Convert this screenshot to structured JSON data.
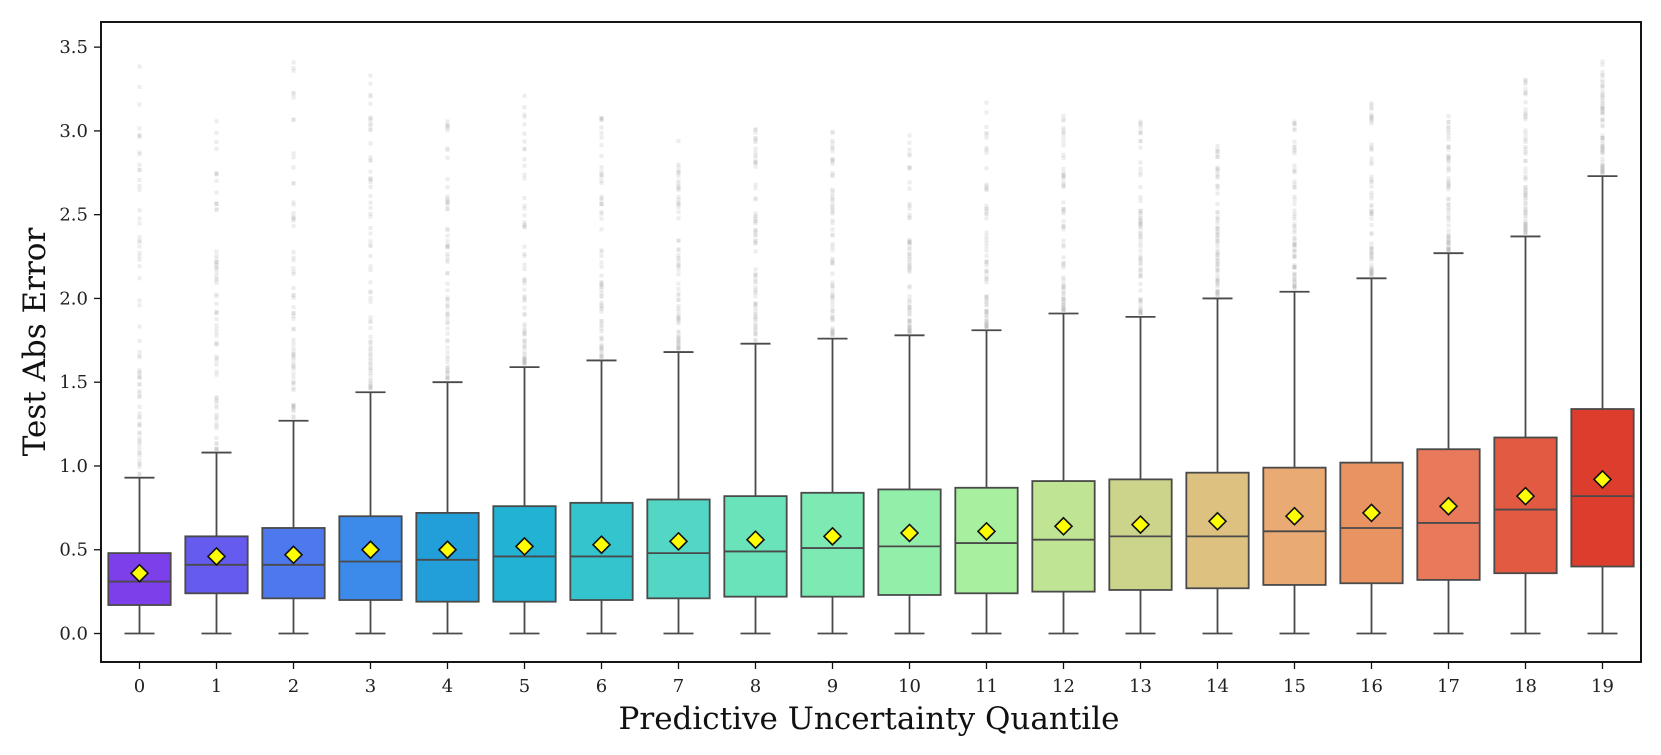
{
  "chart_data": {
    "type": "box",
    "title": "",
    "xlabel": "Predictive Uncertainty Quantile",
    "ylabel": "Test Abs Error",
    "ylim": [
      -0.17,
      3.65
    ],
    "y_ticks": [
      "0.0",
      "0.5",
      "1.0",
      "1.5",
      "2.0",
      "2.5",
      "3.0",
      "3.5"
    ],
    "y_tick_values": [
      0,
      0.5,
      1.0,
      1.5,
      2.0,
      2.5,
      3.0,
      3.5
    ],
    "grid": false,
    "legend": "none",
    "mean_marker": {
      "shape": "diamond",
      "color": "#ffff00",
      "edge_color": "#111111"
    },
    "outlier_color": "#bdbdbd",
    "boxes": [
      {
        "category": "0",
        "color": "#7c3fea",
        "whisker_low": 0.0,
        "q1": 0.17,
        "median": 0.31,
        "q3": 0.48,
        "whisker_high": 0.93,
        "mean": 0.36,
        "outlier_max": 3.48
      },
      {
        "category": "1",
        "color": "#655bee",
        "whisker_low": 0.0,
        "q1": 0.24,
        "median": 0.41,
        "q3": 0.58,
        "whisker_high": 1.08,
        "mean": 0.46,
        "outlier_max": 3.2
      },
      {
        "category": "2",
        "color": "#4e78ee",
        "whisker_low": 0.0,
        "q1": 0.21,
        "median": 0.41,
        "q3": 0.63,
        "whisker_high": 1.27,
        "mean": 0.47,
        "outlier_max": 3.45
      },
      {
        "category": "3",
        "color": "#3c8ae9",
        "whisker_low": 0.0,
        "q1": 0.2,
        "median": 0.43,
        "q3": 0.7,
        "whisker_high": 1.44,
        "mean": 0.5,
        "outlier_max": 3.34
      },
      {
        "category": "4",
        "color": "#229fd8",
        "whisker_low": 0.0,
        "q1": 0.19,
        "median": 0.44,
        "q3": 0.72,
        "whisker_high": 1.5,
        "mean": 0.5,
        "outlier_max": 3.06
      },
      {
        "category": "5",
        "color": "#22b2d4",
        "whisker_low": 0.0,
        "q1": 0.19,
        "median": 0.46,
        "q3": 0.76,
        "whisker_high": 1.59,
        "mean": 0.52,
        "outlier_max": 3.3
      },
      {
        "category": "6",
        "color": "#33c4cd",
        "whisker_low": 0.0,
        "q1": 0.2,
        "median": 0.46,
        "q3": 0.78,
        "whisker_high": 1.63,
        "mean": 0.53,
        "outlier_max": 3.15
      },
      {
        "category": "7",
        "color": "#53d6c4",
        "whisker_low": 0.0,
        "q1": 0.21,
        "median": 0.48,
        "q3": 0.8,
        "whisker_high": 1.68,
        "mean": 0.55,
        "outlier_max": 2.97
      },
      {
        "category": "8",
        "color": "#6ae3ba",
        "whisker_low": 0.0,
        "q1": 0.22,
        "median": 0.49,
        "q3": 0.82,
        "whisker_high": 1.73,
        "mean": 0.56,
        "outlier_max": 3.01
      },
      {
        "category": "9",
        "color": "#7de9b3",
        "whisker_low": 0.0,
        "q1": 0.22,
        "median": 0.51,
        "q3": 0.84,
        "whisker_high": 1.76,
        "mean": 0.58,
        "outlier_max": 3.04
      },
      {
        "category": "10",
        "color": "#92efaa",
        "whisker_low": 0.0,
        "q1": 0.23,
        "median": 0.52,
        "q3": 0.86,
        "whisker_high": 1.78,
        "mean": 0.6,
        "outlier_max": 3.09
      },
      {
        "category": "11",
        "color": "#a8f09f",
        "whisker_low": 0.0,
        "q1": 0.24,
        "median": 0.54,
        "q3": 0.87,
        "whisker_high": 1.81,
        "mean": 0.61,
        "outlier_max": 3.2
      },
      {
        "category": "12",
        "color": "#bee494",
        "whisker_low": 0.0,
        "q1": 0.25,
        "median": 0.56,
        "q3": 0.91,
        "whisker_high": 1.91,
        "mean": 0.64,
        "outlier_max": 3.13
      },
      {
        "category": "13",
        "color": "#ccd48c",
        "whisker_low": 0.0,
        "q1": 0.26,
        "median": 0.58,
        "q3": 0.92,
        "whisker_high": 1.89,
        "mean": 0.65,
        "outlier_max": 3.09
      },
      {
        "category": "14",
        "color": "#dcc180",
        "whisker_low": 0.0,
        "q1": 0.27,
        "median": 0.58,
        "q3": 0.96,
        "whisker_high": 2.0,
        "mean": 0.67,
        "outlier_max": 2.98
      },
      {
        "category": "15",
        "color": "#eaaa73",
        "whisker_low": 0.0,
        "q1": 0.29,
        "median": 0.61,
        "q3": 0.99,
        "whisker_high": 2.04,
        "mean": 0.7,
        "outlier_max": 3.09
      },
      {
        "category": "16",
        "color": "#e99363",
        "whisker_low": 0.0,
        "q1": 0.3,
        "median": 0.63,
        "q3": 1.02,
        "whisker_high": 2.12,
        "mean": 0.72,
        "outlier_max": 3.21
      },
      {
        "category": "17",
        "color": "#e8795a",
        "whisker_low": 0.0,
        "q1": 0.32,
        "median": 0.66,
        "q3": 1.1,
        "whisker_high": 2.27,
        "mean": 0.76,
        "outlier_max": 3.11
      },
      {
        "category": "18",
        "color": "#e25a41",
        "whisker_low": 0.0,
        "q1": 0.36,
        "median": 0.74,
        "q3": 1.17,
        "whisker_high": 2.37,
        "mean": 0.82,
        "outlier_max": 3.31
      },
      {
        "category": "19",
        "color": "#dc3d2d",
        "whisker_low": 0.0,
        "q1": 0.4,
        "median": 0.82,
        "q3": 1.34,
        "whisker_high": 2.73,
        "mean": 0.92,
        "outlier_max": 3.44
      }
    ]
  }
}
